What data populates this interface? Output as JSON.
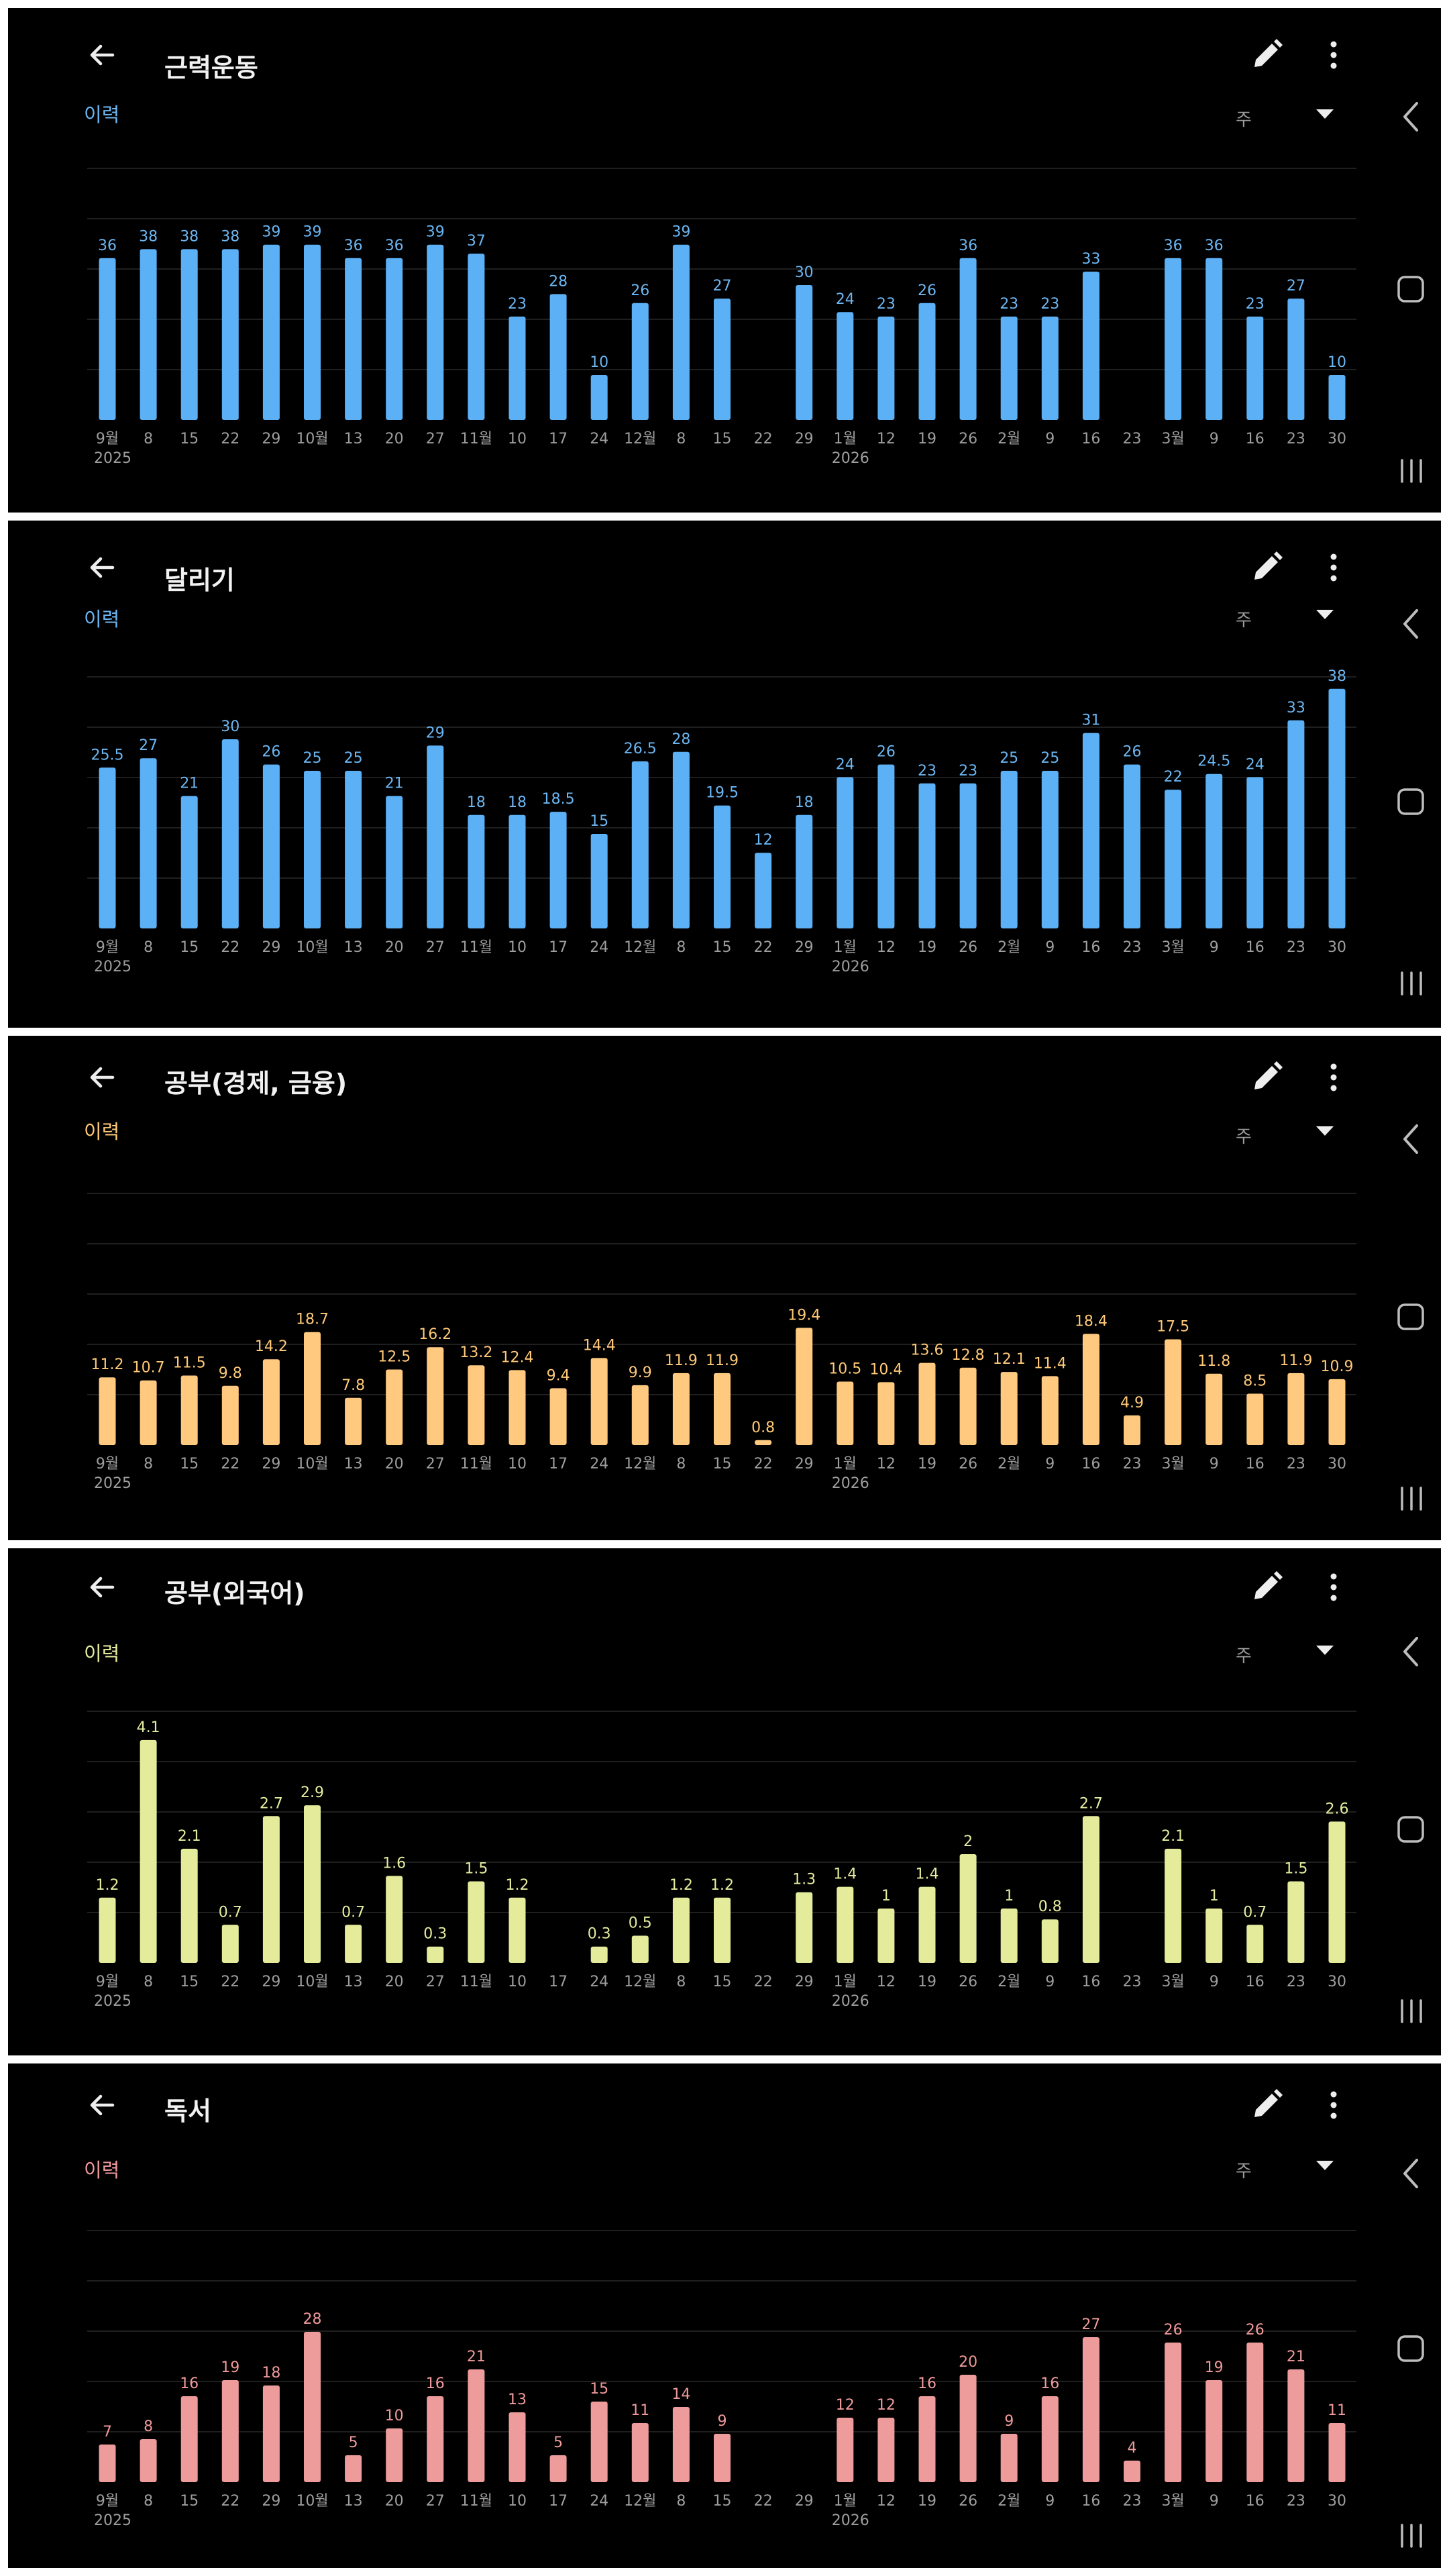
{
  "x_labels": [
    "9월",
    "8",
    "15",
    "22",
    "29",
    "10월",
    "13",
    "20",
    "27",
    "11월",
    "10",
    "17",
    "24",
    "12월",
    "8",
    "15",
    "22",
    "29",
    "1월",
    "12",
    "19",
    "26",
    "2월",
    "9",
    "16",
    "23",
    "3월",
    "9",
    "16",
    "23",
    "30"
  ],
  "year_labels": [
    {
      "index": 0,
      "text": "2025"
    },
    {
      "index": 18,
      "text": "2026"
    }
  ],
  "panels": [
    {
      "title": "근력운동",
      "history_label": "이력",
      "period": "주",
      "accent": "#5cb0f5",
      "label_color": "#6cb6f2",
      "chart_data": {
        "type": "bar",
        "categories": [
          "9월",
          "8",
          "15",
          "22",
          "29",
          "10월",
          "13",
          "20",
          "27",
          "11월",
          "10",
          "17",
          "24",
          "12월",
          "8",
          "15",
          "22",
          "29",
          "1월",
          "12",
          "19",
          "26",
          "2월",
          "9",
          "16",
          "23",
          "3월",
          "9",
          "16",
          "23",
          "30"
        ],
        "values": [
          36,
          38,
          38,
          38,
          39,
          39,
          36,
          36,
          39,
          37,
          23,
          28,
          10,
          26,
          39,
          27,
          null,
          30,
          24,
          23,
          26,
          36,
          23,
          23,
          33,
          null,
          36,
          36,
          23,
          27,
          10
        ],
        "labels": [
          "36",
          "38",
          "38",
          "38",
          "39",
          "39",
          "36",
          "36",
          "39",
          "37",
          "23",
          "28",
          "10",
          "26",
          "39",
          "27",
          "",
          "30",
          "24",
          "23",
          "26",
          "36",
          "23",
          "23",
          "33",
          "",
          "36",
          "36",
          "23",
          "27",
          "10"
        ],
        "ylim": [
          0,
          50
        ]
      }
    },
    {
      "title": "달리기",
      "history_label": "이력",
      "period": "주",
      "accent": "#5cb0f5",
      "label_color": "#6cb6f2",
      "chart_data": {
        "type": "bar",
        "categories": [
          "9월",
          "8",
          "15",
          "22",
          "29",
          "10월",
          "13",
          "20",
          "27",
          "11월",
          "10",
          "17",
          "24",
          "12월",
          "8",
          "15",
          "22",
          "29",
          "1월",
          "12",
          "19",
          "26",
          "2월",
          "9",
          "16",
          "23",
          "3월",
          "9",
          "16",
          "23",
          "30"
        ],
        "values": [
          25.5,
          27,
          21,
          30,
          26,
          25,
          25,
          21,
          29,
          18,
          18,
          18.5,
          15,
          26.5,
          28,
          19.5,
          12,
          18,
          24,
          26,
          23,
          23,
          25,
          25,
          31,
          26,
          22,
          24.5,
          24,
          33,
          38
        ],
        "labels": [
          "25.5",
          "27",
          "21",
          "30",
          "26",
          "25",
          "25",
          "21",
          "29",
          "18",
          "18",
          "18.5",
          "15",
          "26.5",
          "28",
          "19.5",
          "12",
          "18",
          "24",
          "26",
          "23",
          "23",
          "25",
          "25",
          "31",
          "26",
          "22",
          "24.5",
          "24",
          "33",
          "38"
        ],
        "ylim": [
          0,
          40
        ]
      }
    },
    {
      "title": "공부(경제, 금융)",
      "history_label": "이력",
      "period": "주",
      "accent": "#ffca80",
      "label_color": "#ffc978",
      "chart_data": {
        "type": "bar",
        "categories": [
          "9월",
          "8",
          "15",
          "22",
          "29",
          "10월",
          "13",
          "20",
          "27",
          "11월",
          "10",
          "17",
          "24",
          "12월",
          "8",
          "15",
          "22",
          "29",
          "1월",
          "12",
          "19",
          "26",
          "2월",
          "9",
          "16",
          "23",
          "3월",
          "9",
          "16",
          "23",
          "30"
        ],
        "values": [
          11.2,
          10.7,
          11.5,
          9.8,
          14.2,
          18.7,
          7.8,
          12.5,
          16.2,
          13.2,
          12.4,
          9.4,
          14.4,
          9.9,
          11.9,
          11.9,
          0.8,
          19.4,
          10.5,
          10.4,
          13.6,
          12.8,
          12.1,
          11.4,
          18.4,
          4.9,
          17.5,
          11.8,
          8.5,
          11.9,
          10.9
        ],
        "labels": [
          "11.2",
          "10.7",
          "11.5",
          "9.8",
          "14.2",
          "18.7",
          "7.8",
          "12.5",
          "16.2",
          "13.2",
          "12.4",
          "9.4",
          "14.4",
          "9.9",
          "11.9",
          "11.9",
          "0.8",
          "19.4",
          "10.5",
          "10.4",
          "13.6",
          "12.8",
          "12.1",
          "11.4",
          "18.4",
          "4.9",
          "17.5",
          "11.8",
          "8.5",
          "11.9",
          "10.9"
        ],
        "ylim": [
          0,
          40
        ]
      }
    },
    {
      "title": "공부(외국어)",
      "history_label": "이력",
      "period": "주",
      "accent": "#e4ec9c",
      "label_color": "#e6ec9e",
      "chart_data": {
        "type": "bar",
        "categories": [
          "9월",
          "8",
          "15",
          "22",
          "29",
          "10월",
          "13",
          "20",
          "27",
          "11월",
          "10",
          "17",
          "24",
          "12월",
          "8",
          "15",
          "22",
          "29",
          "1월",
          "12",
          "19",
          "26",
          "2월",
          "9",
          "16",
          "23",
          "3월",
          "9",
          "16",
          "23",
          "30"
        ],
        "values": [
          1.2,
          4.1,
          2.1,
          0.7,
          2.7,
          2.9,
          0.7,
          1.6,
          0.3,
          1.5,
          1.2,
          null,
          0.3,
          0.5,
          1.2,
          1.2,
          null,
          1.3,
          1.4,
          1,
          1.4,
          2,
          1,
          0.8,
          2.7,
          null,
          2.1,
          1,
          0.7,
          1.5,
          2.6
        ],
        "labels": [
          "1.2",
          "4.1",
          "2.1",
          "0.7",
          "2.7",
          "2.9",
          "0.7",
          "1.6",
          "0.3",
          "1.5",
          "1.2",
          "",
          "0.3",
          "0.5",
          "1.2",
          "1.2",
          "",
          "1.3",
          "1.4",
          "1",
          "1.4",
          "2",
          "1",
          "0.8",
          "2.7",
          "",
          "2.1",
          "1",
          "0.7",
          "1.5",
          "2.6"
        ],
        "ylim": [
          0,
          5
        ]
      }
    },
    {
      "title": "독서",
      "history_label": "이력",
      "period": "주",
      "accent": "#ee9b9b",
      "label_color": "#f09a9a",
      "chart_data": {
        "type": "bar",
        "categories": [
          "9월",
          "8",
          "15",
          "22",
          "29",
          "10월",
          "13",
          "20",
          "27",
          "11월",
          "10",
          "17",
          "24",
          "12월",
          "8",
          "15",
          "22",
          "29",
          "1월",
          "12",
          "19",
          "26",
          "2월",
          "9",
          "16",
          "23",
          "3월",
          "9",
          "16",
          "23",
          "30"
        ],
        "values": [
          7,
          8,
          16,
          19,
          18,
          28,
          5,
          10,
          16,
          21,
          13,
          5,
          15,
          11,
          14,
          9,
          null,
          null,
          12,
          12,
          16,
          20,
          9,
          16,
          27,
          4,
          26,
          19,
          26,
          21,
          11
        ],
        "labels": [
          "7",
          "8",
          "16",
          "19",
          "18",
          "28",
          "5",
          "10",
          "16",
          "21",
          "13",
          "5",
          "15",
          "11",
          "14",
          "9",
          "",
          "",
          "12",
          "12",
          "16",
          "20",
          "9",
          "16",
          "27",
          "4",
          "26",
          "19",
          "26",
          "21",
          "11"
        ],
        "ylim": [
          0,
          30
        ]
      }
    }
  ]
}
